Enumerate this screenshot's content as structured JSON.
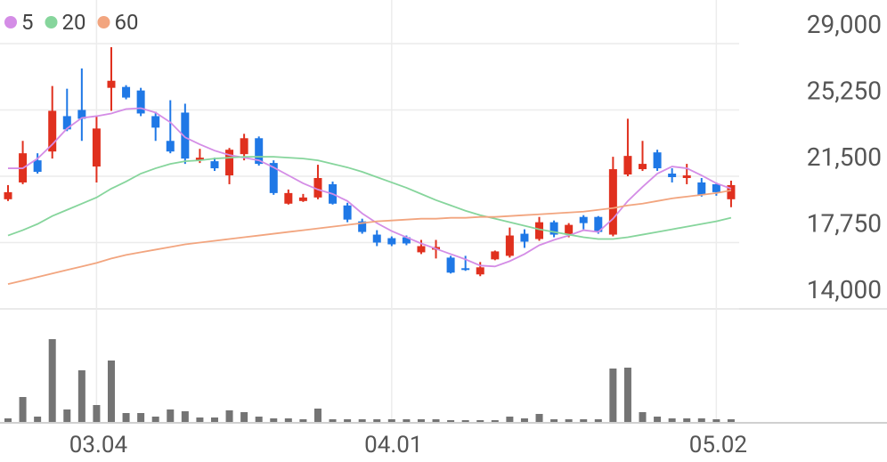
{
  "chart_data": {
    "type": "candlestick",
    "categories": [
      null,
      null,
      null,
      null,
      null,
      null,
      "03.04",
      null,
      null,
      null,
      null,
      null,
      null,
      null,
      null,
      null,
      null,
      null,
      null,
      null,
      null,
      null,
      null,
      null,
      null,
      null,
      "04.01",
      null,
      null,
      null,
      null,
      null,
      null,
      null,
      null,
      null,
      null,
      null,
      null,
      null,
      null,
      null,
      null,
      null,
      null,
      null,
      null,
      null,
      "05.02",
      null
    ],
    "open": [
      20200,
      21150,
      22400,
      22900,
      24900,
      25250,
      22050,
      26500,
      26550,
      26350,
      24900,
      23500,
      25100,
      22400,
      22350,
      21550,
      22750,
      23650,
      22250,
      19950,
      20100,
      20300,
      21050,
      19850,
      18950,
      18200,
      18000,
      18050,
      17200,
      17350,
      16900,
      16300,
      15950,
      16800,
      17000,
      18250,
      17950,
      18900,
      18200,
      19200,
      19200,
      18200,
      21600,
      21900,
      22850,
      21650,
      21400,
      21150,
      21050,
      20200
    ],
    "high": [
      21000,
      23500,
      22800,
      26600,
      26450,
      27600,
      24900,
      28800,
      26650,
      26500,
      25150,
      25800,
      25600,
      23050,
      22550,
      23100,
      23900,
      23750,
      22400,
      20750,
      20500,
      22150,
      21200,
      20000,
      19100,
      18450,
      18100,
      18150,
      17900,
      17900,
      17000,
      17000,
      16650,
      17300,
      18600,
      18500,
      19200,
      19000,
      18850,
      19300,
      19250,
      22600,
      24750,
      23500,
      23000,
      21950,
      22200,
      21400,
      21150,
      21250
    ],
    "low": [
      20100,
      21050,
      21650,
      22500,
      24050,
      23500,
      21150,
      25200,
      25850,
      24900,
      23500,
      22800,
      22200,
      22250,
      21800,
      21050,
      22400,
      22100,
      20450,
      19900,
      20050,
      20200,
      19900,
      18900,
      18250,
      17550,
      17550,
      17600,
      17100,
      16850,
      16000,
      16150,
      15850,
      16750,
      16900,
      17450,
      17850,
      18050,
      18050,
      18500,
      18250,
      18100,
      21500,
      21800,
      21800,
      21150,
      21050,
      20350,
      20400,
      19750
    ],
    "close": [
      20600,
      22800,
      21750,
      25200,
      24150,
      24750,
      24200,
      26900,
      25950,
      25050,
      24250,
      22900,
      22500,
      22550,
      21950,
      23000,
      23650,
      22200,
      20550,
      20550,
      20300,
      21400,
      19950,
      19050,
      18350,
      17750,
      17650,
      17700,
      17550,
      17500,
      16050,
      16200,
      16350,
      17250,
      18150,
      17800,
      18900,
      18200,
      18750,
      18850,
      18350,
      21900,
      22650,
      22200,
      21950,
      21450,
      21550,
      20450,
      20600,
      21000
    ],
    "up_color": "#e0301e",
    "down_color": "#1f78e6",
    "series": [
      {
        "name": "5",
        "color": "#d48de6",
        "values": [
          21950,
          21950,
          22500,
          23300,
          24200,
          24800,
          24900,
          25050,
          25300,
          25350,
          25100,
          24550,
          23700,
          23300,
          22950,
          22700,
          22550,
          22400,
          22000,
          21550,
          21100,
          20750,
          20500,
          20100,
          19400,
          18850,
          18400,
          18050,
          17700,
          17400,
          17100,
          16800,
          16450,
          16400,
          16700,
          17100,
          17600,
          17900,
          18150,
          18450,
          18350,
          19100,
          20100,
          20900,
          21650,
          22050,
          21950,
          21550,
          21100,
          20800
        ]
      },
      {
        "name": "20",
        "color": "#86d59c",
        "values": [
          18150,
          18450,
          18800,
          19250,
          19600,
          19950,
          20300,
          20800,
          21200,
          21650,
          21950,
          22200,
          22350,
          22400,
          22500,
          22550,
          22600,
          22600,
          22600,
          22550,
          22500,
          22400,
          22200,
          22000,
          21750,
          21450,
          21150,
          20850,
          20500,
          20150,
          19850,
          19550,
          19300,
          19100,
          18900,
          18700,
          18500,
          18350,
          18200,
          18050,
          17950,
          17950,
          18050,
          18200,
          18350,
          18500,
          18650,
          18800,
          18950,
          19150
        ]
      },
      {
        "name": "60",
        "color": "#f2a57f",
        "values": [
          15400,
          15600,
          15800,
          16000,
          16200,
          16400,
          16600,
          16850,
          17050,
          17200,
          17350,
          17500,
          17650,
          17750,
          17850,
          17950,
          18050,
          18150,
          18250,
          18350,
          18450,
          18550,
          18650,
          18750,
          18850,
          18950,
          19000,
          19050,
          19100,
          19100,
          19150,
          19150,
          19200,
          19200,
          19250,
          19300,
          19350,
          19400,
          19450,
          19500,
          19600,
          19700,
          19850,
          19950,
          20100,
          20250,
          20350,
          20450,
          20550,
          20700
        ]
      }
    ],
    "volume": {
      "color": "#747474",
      "values": [
        4,
        28,
        6,
        93,
        14,
        58,
        19,
        69,
        10,
        10,
        6,
        14,
        12,
        5,
        5,
        13,
        11,
        6,
        4,
        4,
        3,
        15,
        3,
        3,
        3,
        3,
        3,
        3,
        3,
        3,
        2,
        2,
        2,
        2,
        6,
        4,
        9,
        3,
        3,
        3,
        3,
        60,
        61,
        11,
        6,
        4,
        4,
        4,
        3,
        3
      ]
    },
    "ylim": [
      14000,
      29000
    ],
    "yticks": [
      {
        "value": 14000,
        "label": "14,000"
      },
      {
        "value": 17750,
        "label": "17,750"
      },
      {
        "value": 21500,
        "label": "21,500"
      },
      {
        "value": 25250,
        "label": "25,250"
      },
      {
        "value": 29000,
        "label": "29,000"
      }
    ],
    "grid": true
  }
}
